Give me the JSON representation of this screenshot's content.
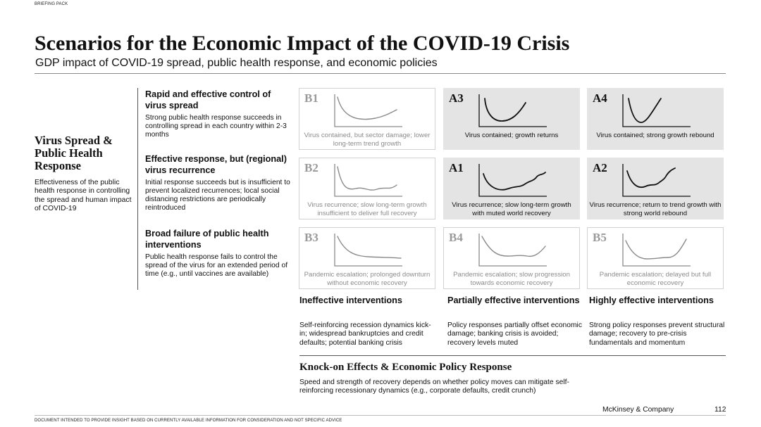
{
  "header": {
    "tag": "BRIEFING PACK",
    "title": "Scenarios for the Economic Impact of the COVID-19 Crisis",
    "subtitle": "GDP impact of COVID-19 spread, public health response, and economic policies"
  },
  "left_axis": {
    "title": "Virus Spread & Public Health Response",
    "description": "Effectiveness of the public health response in controlling the spread and human impact of COVID-19"
  },
  "rows": [
    {
      "title": "Rapid and effective control of virus spread",
      "description": "Strong public health response succeeds in controlling spread in each country within 2-3 months"
    },
    {
      "title": "Effective response, but (regional) virus recurrence",
      "description": "Initial response succeeds but is insufficient to prevent localized recurrences; local social distancing restrictions are periodically reintroduced"
    },
    {
      "title": "Broad failure of public health interventions",
      "description": "Public health response fails to control the spread of the virus for an extended period of time (e.g., until vaccines are available)"
    }
  ],
  "scenarios": [
    {
      "code": "B1",
      "caption": "Virus contained, but sector damage; lower long-term trend growth",
      "curve": "b1",
      "style": "light"
    },
    {
      "code": "A3",
      "caption": "Virus contained; growth returns",
      "curve": "a3",
      "style": "shade"
    },
    {
      "code": "A4",
      "caption": "Virus contained; strong growth rebound",
      "curve": "a4",
      "style": "shade"
    },
    {
      "code": "B2",
      "caption": "Virus recurrence; slow long-term growth insufficient to deliver full recovery",
      "curve": "b2",
      "style": "light"
    },
    {
      "code": "A1",
      "caption": "Virus recurrence; slow long-term growth with muted world recovery",
      "curve": "a1",
      "style": "shade"
    },
    {
      "code": "A2",
      "caption": "Virus recurrence; return to trend growth with strong world rebound",
      "curve": "a2",
      "style": "shade"
    },
    {
      "code": "B3",
      "caption": "Pandemic escalation; prolonged downturn without economic recovery",
      "curve": "b3",
      "style": "light"
    },
    {
      "code": "B4",
      "caption": "Pandemic escalation; slow progression towards economic recovery",
      "curve": "b4",
      "style": "light"
    },
    {
      "code": "B5",
      "caption": "Pandemic escalation; delayed but full economic recovery",
      "curve": "b5",
      "style": "light"
    }
  ],
  "columns": [
    {
      "title": "Ineffective interventions",
      "description": "Self-reinforcing recession dynamics kick-in; widespread bankruptcies and credit defaults; potential banking crisis"
    },
    {
      "title": "Partially effective interventions",
      "description": "Policy responses partially offset economic damage; banking crisis is avoided; recovery levels muted"
    },
    {
      "title": "Highly effective interventions",
      "description": "Strong policy responses prevent structural damage; recovery to pre-crisis fundamentals and momentum"
    }
  ],
  "bottom_axis": {
    "title": "Knock-on Effects & Economic Policy Response",
    "description": "Speed and strength of recovery depends on whether policy moves can mitigate self-reinforcing recessionary dynamics (e.g., corporate defaults, credit crunch)"
  },
  "footer": {
    "disclaimer": "DOCUMENT INTENDED TO PROVIDE INSIGHT BASED ON CURRENTLY AVAILABLE INFORMATION FOR CONSIDERATION AND NOT SPECIFIC ADVICE",
    "brand": "McKinsey & Company",
    "page": "112"
  },
  "colors": {
    "shade": "#e4e4e4",
    "light_text": "#8c8c8c",
    "line_dark": "#111111",
    "line_light": "#8a8a8a"
  }
}
